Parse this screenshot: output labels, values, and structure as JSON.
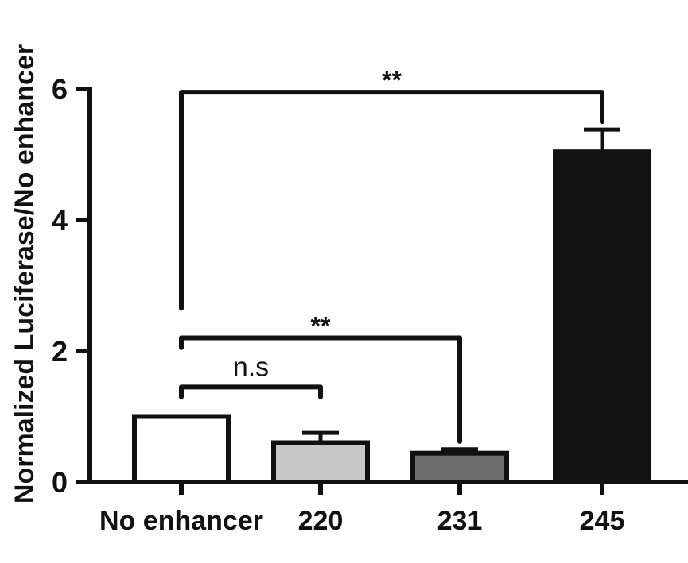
{
  "chart_data": {
    "type": "bar",
    "title": "",
    "xlabel": "",
    "ylabel": "Normalized Luciferase/No enhancer",
    "ylim": [
      0,
      6
    ],
    "yticks": [
      0,
      2,
      4,
      6
    ],
    "grid": false,
    "categories": [
      "No enhancer",
      "220",
      "231",
      "245"
    ],
    "values": [
      1.0,
      0.6,
      0.44,
      5.04
    ],
    "errors": [
      0,
      0.15,
      0.06,
      0.34
    ],
    "colors": [
      "#ffffff",
      "#c8c8c8",
      "#6e6e6e",
      "#111111"
    ],
    "comparisons": [
      {
        "from": 0,
        "to": 1,
        "label": "n.s",
        "y": 1.45
      },
      {
        "from": 0,
        "to": 2,
        "label": "**",
        "y": 2.2
      },
      {
        "from": 0,
        "to": 3,
        "label": "**",
        "y": 5.95
      }
    ]
  }
}
